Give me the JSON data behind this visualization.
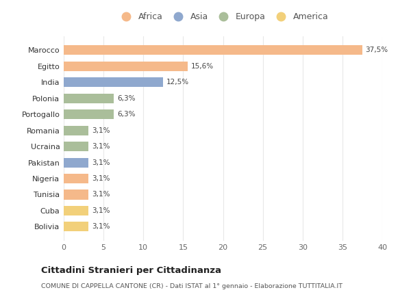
{
  "countries": [
    "Bolivia",
    "Cuba",
    "Tunisia",
    "Nigeria",
    "Pakistan",
    "Ucraina",
    "Romania",
    "Portogallo",
    "Polonia",
    "India",
    "Egitto",
    "Marocco"
  ],
  "values": [
    3.1,
    3.1,
    3.1,
    3.1,
    3.1,
    3.1,
    3.1,
    6.3,
    6.3,
    12.5,
    15.6,
    37.5
  ],
  "labels": [
    "3,1%",
    "3,1%",
    "3,1%",
    "3,1%",
    "3,1%",
    "3,1%",
    "3,1%",
    "6,3%",
    "6,3%",
    "12,5%",
    "15,6%",
    "37,5%"
  ],
  "africa_color": "#F5B98A",
  "asia_color": "#8FA8CE",
  "europa_color": "#AABE9A",
  "america_color": "#F2D07A",
  "title": "Cittadini Stranieri per Cittadinanza",
  "subtitle": "COMUNE DI CAPPELLA CANTONE (CR) - Dati ISTAT al 1° gennaio - Elaborazione TUTTITALIA.IT",
  "xlim": [
    0,
    40
  ],
  "xticks": [
    0,
    5,
    10,
    15,
    20,
    25,
    30,
    35,
    40
  ],
  "background_color": "#ffffff",
  "grid_color": "#e8e8e8",
  "bar_height": 0.6
}
